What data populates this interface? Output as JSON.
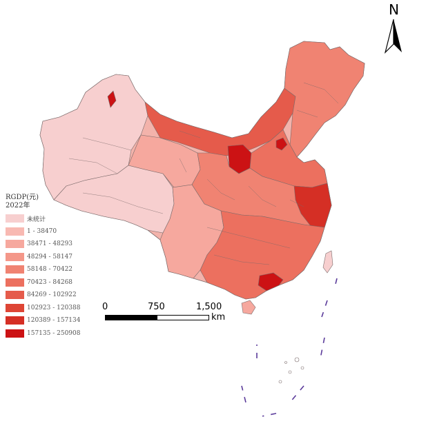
{
  "map": {
    "legend": {
      "title": "RGDP(元)",
      "year": "2022年",
      "classes": [
        {
          "label": "未统计",
          "color": "#f7cfcf"
        },
        {
          "label": "1 - 38470",
          "color": "#f8b9b2"
        },
        {
          "label": "38471 - 48293",
          "color": "#f6a89e"
        },
        {
          "label": "48294 - 58147",
          "color": "#f49789"
        },
        {
          "label": "58148 - 70422",
          "color": "#f08372"
        },
        {
          "label": "70423 - 84268",
          "color": "#ec705f"
        },
        {
          "label": "84269 - 102922",
          "color": "#e55b4b"
        },
        {
          "label": "102923 - 120388",
          "color": "#de4535"
        },
        {
          "label": "120389 - 157134",
          "color": "#d52f25"
        },
        {
          "label": "157135 - 250908",
          "color": "#cc1214"
        }
      ]
    },
    "north_arrow": {
      "letter": "N"
    },
    "scale_bar": {
      "ticks": [
        "0",
        "750",
        "1,500"
      ],
      "unit": "km"
    },
    "colors": {
      "boundary": "#7a6a6a",
      "dash_line": "#5a3a9a",
      "base_fill": "#f3b3ab"
    }
  }
}
